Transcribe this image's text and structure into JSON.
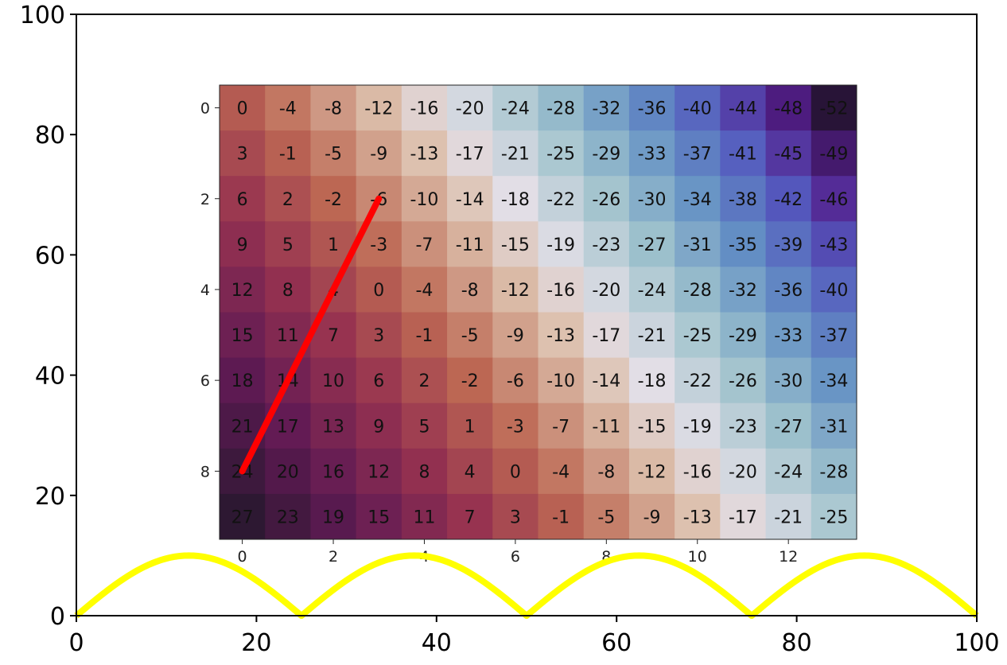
{
  "chart_data": [
    {
      "type": "line",
      "xlim": [
        0,
        100
      ],
      "ylim": [
        0,
        100
      ],
      "x_ticks": [
        0,
        20,
        40,
        60,
        80,
        100
      ],
      "y_ticks": [
        0,
        20,
        40,
        60,
        80,
        100
      ],
      "grid": false,
      "series": [
        {
          "color": "#ffff00",
          "function": "10*|sin(pi*x/25)|",
          "x": [
            0,
            2.5,
            5,
            7.5,
            10,
            12.5,
            15,
            17.5,
            20,
            22.5,
            25,
            27.5,
            30,
            32.5,
            35,
            37.5,
            40,
            42.5,
            45,
            47.5,
            50,
            52.5,
            55,
            57.5,
            60,
            62.5,
            65,
            67.5,
            70,
            72.5,
            75,
            77.5,
            80,
            82.5,
            85,
            87.5,
            90,
            92.5,
            95,
            97.5,
            100
          ],
          "y": [
            0,
            3.09,
            5.88,
            8.09,
            9.51,
            10,
            9.51,
            8.09,
            5.88,
            3.09,
            0,
            3.09,
            5.88,
            8.09,
            9.51,
            10,
            9.51,
            8.09,
            5.88,
            3.09,
            0,
            3.09,
            5.88,
            8.09,
            9.51,
            10,
            9.51,
            8.09,
            5.88,
            3.09,
            0,
            3.09,
            5.88,
            8.09,
            9.51,
            10,
            9.51,
            8.09,
            5.88,
            3.09,
            0
          ]
        }
      ]
    },
    {
      "type": "heatmap",
      "colormap": "twilight_shifted",
      "rows": 10,
      "cols": 14,
      "row_ticks": [
        0,
        2,
        4,
        6,
        8
      ],
      "col_ticks": [
        0,
        2,
        4,
        6,
        8,
        10,
        12
      ],
      "values": [
        [
          0,
          -4,
          -8,
          -12,
          -16,
          -20,
          -24,
          -28,
          -32,
          -36,
          -40,
          -44,
          -48,
          -52
        ],
        [
          3,
          -1,
          -5,
          -9,
          -13,
          -17,
          -21,
          -25,
          -29,
          -33,
          -37,
          -41,
          -45,
          -49
        ],
        [
          6,
          2,
          -2,
          -6,
          -10,
          -14,
          -18,
          -22,
          -26,
          -30,
          -34,
          -38,
          -42,
          -46
        ],
        [
          9,
          5,
          1,
          -3,
          -7,
          -11,
          -15,
          -19,
          -23,
          -27,
          -31,
          -35,
          -39,
          -43
        ],
        [
          12,
          8,
          4,
          0,
          -4,
          -8,
          -12,
          -16,
          -20,
          -24,
          -28,
          -32,
          -36,
          -40
        ],
        [
          15,
          11,
          7,
          3,
          -1,
          -5,
          -9,
          -13,
          -17,
          -21,
          -25,
          -29,
          -33,
          -37
        ],
        [
          18,
          14,
          10,
          6,
          2,
          -2,
          -6,
          -10,
          -14,
          -18,
          -22,
          -26,
          -30,
          -34
        ],
        [
          21,
          17,
          13,
          9,
          5,
          1,
          -3,
          -7,
          -11,
          -15,
          -19,
          -23,
          -27,
          -31
        ],
        [
          24,
          20,
          16,
          12,
          8,
          4,
          0,
          -4,
          -8,
          -12,
          -16,
          -20,
          -24,
          -28
        ],
        [
          27,
          23,
          19,
          15,
          11,
          7,
          3,
          -1,
          -5,
          -9,
          -13,
          -17,
          -21,
          -25
        ]
      ],
      "overlay_line": {
        "color": "#ff0000",
        "from": {
          "col": 0,
          "row": 8
        },
        "to": {
          "col": 3,
          "row": 2
        }
      }
    }
  ]
}
